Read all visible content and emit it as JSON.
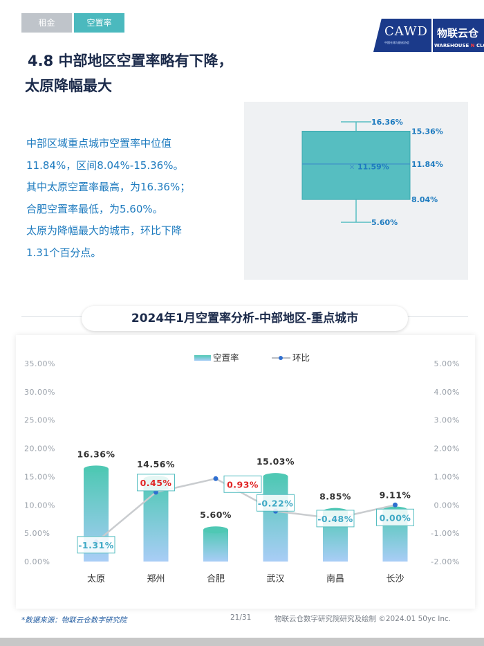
{
  "tabs": [
    {
      "label": "租金",
      "active": false
    },
    {
      "label": "空置率",
      "active": true
    }
  ],
  "logo": {
    "cawd": "CAWD",
    "cawd_sub": "中国仓储与配送协会",
    "brand": "物联云仓",
    "warehouse_a": "WAREHOUSE ",
    "warehouse_n": "N",
    "warehouse_b": " CLOUD"
  },
  "title": {
    "line1": "4.8 中部地区空置率略有下降，",
    "line2": "太原降幅最大"
  },
  "description": [
    "中部区域重点城市空置率中位值",
    "11.84%，区间8.04%-15.36%。",
    "其中太原空置率最高，为16.36%；",
    "合肥空置率最低，为5.60%。",
    "太原为降幅最大的城市，环比下降",
    "1.31个百分点。"
  ],
  "boxplot": {
    "max": 16.36,
    "q3": 15.36,
    "median": 11.84,
    "mean": 11.59,
    "q1": 8.04,
    "min": 5.6,
    "labels": {
      "max": "16.36%",
      "q3": "15.36%",
      "median": "11.84%",
      "mean": "11.59%",
      "q1": "8.04%",
      "min": "5.60%"
    },
    "mean_marker": "×",
    "color": "#56bec1"
  },
  "chart_data": {
    "type": "bar",
    "title": "2024年1月空置率分析-中部地区-重点城市",
    "categories": [
      "太原",
      "郑州",
      "合肥",
      "武汉",
      "南昌",
      "长沙"
    ],
    "series": [
      {
        "name": "空置率",
        "type": "bar",
        "axis": "left",
        "values": [
          16.36,
          14.56,
          5.6,
          15.03,
          8.85,
          9.11
        ],
        "labels": [
          "16.36%",
          "14.56%",
          "5.60%",
          "15.03%",
          "8.85%",
          "9.11%"
        ]
      },
      {
        "name": "环比",
        "type": "line",
        "axis": "right",
        "values": [
          -1.31,
          0.45,
          0.93,
          -0.22,
          -0.48,
          0.0
        ],
        "labels": [
          "-1.31%",
          "0.45%",
          "0.93%",
          "-0.22%",
          "-0.48%",
          "0.00%"
        ]
      }
    ],
    "left_axis": {
      "min": 0,
      "max": 35,
      "step": 5,
      "ticks": [
        "0.00%",
        "5.00%",
        "10.00%",
        "15.00%",
        "20.00%",
        "25.00%",
        "30.00%",
        "35.00%"
      ]
    },
    "right_axis": {
      "min": -2,
      "max": 5,
      "step": 1,
      "ticks": [
        "-2.00%",
        "-1.00%",
        "0.00%",
        "1.00%",
        "2.00%",
        "3.00%",
        "4.00%",
        "5.00%"
      ]
    },
    "legend": "top-center",
    "colors": {
      "bar_top": "#4fc8b4",
      "bar_bottom": "#a9cdf6",
      "line": "#c9cccf",
      "marker": "#2f6fd0",
      "positive": "#e02424",
      "negative": "#3fa9c5",
      "box_border": "#56bec1"
    }
  },
  "footer": {
    "source": "*数据来源：物联云仓数字研究院",
    "page": "21/31",
    "credit": "物联云仓数字研究院研究及绘制   ©2024.01 50yc Inc."
  }
}
